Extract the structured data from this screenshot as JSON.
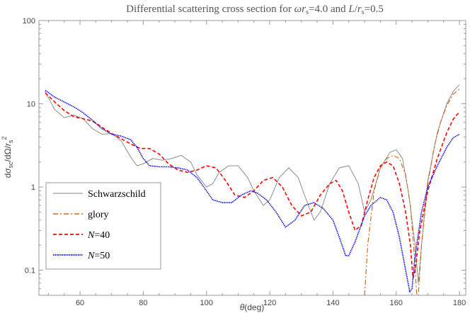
{
  "chart_data": {
    "type": "line",
    "title": "Differential scattering cross section for ωr_s=4.0 and L/r_s=0.5",
    "title_parts": {
      "prefix": "Differential scattering cross section for ",
      "omega": "ω",
      "r": "r",
      "s": "s",
      "eq1": "=4.0 and ",
      "L": "L",
      "slash": "/",
      "eq2": "=0.5"
    },
    "xlabel": "θ(deg)",
    "ylabel": "dσ_sc/dΩ/r_s²",
    "xlim": [
      47,
      182
    ],
    "ylim": [
      0.05,
      100
    ],
    "yscale": "log",
    "x_ticks": [
      60,
      80,
      100,
      120,
      140,
      160,
      180
    ],
    "y_ticks": [
      {
        "value": 0.1,
        "label": "0.1"
      },
      {
        "value": 1,
        "label": "1"
      },
      {
        "value": 10,
        "label": "10"
      },
      {
        "value": 100,
        "label": "100"
      }
    ],
    "legend_position": "bottom-left",
    "series": [
      {
        "name": "Schwarzschild",
        "color": "#808080",
        "style": "solid",
        "points": [
          [
            49,
            14
          ],
          [
            52,
            8.5
          ],
          [
            55,
            6.8
          ],
          [
            58,
            7.3
          ],
          [
            61,
            6.6
          ],
          [
            64,
            5.0
          ],
          [
            67,
            4.3
          ],
          [
            70,
            4.4
          ],
          [
            73,
            3.6
          ],
          [
            76,
            2.3
          ],
          [
            78,
            1.8
          ],
          [
            80,
            1.9
          ],
          [
            83,
            2.2
          ],
          [
            86,
            2.1
          ],
          [
            89,
            2.2
          ],
          [
            92,
            2.4
          ],
          [
            95,
            2.0
          ],
          [
            97,
            1.4
          ],
          [
            100,
            1.0
          ],
          [
            102,
            1.1
          ],
          [
            104,
            1.5
          ],
          [
            107,
            1.8
          ],
          [
            110,
            1.8
          ],
          [
            113,
            1.3
          ],
          [
            115,
            0.9
          ],
          [
            118,
            0.6
          ],
          [
            120,
            0.7
          ],
          [
            123,
            1.3
          ],
          [
            126,
            1.7
          ],
          [
            129,
            1.3
          ],
          [
            131,
            0.8
          ],
          [
            134,
            0.4
          ],
          [
            136,
            0.5
          ],
          [
            139,
            1.1
          ],
          [
            142,
            1.7
          ],
          [
            145,
            1.8
          ],
          [
            148,
            1.1
          ],
          [
            150,
            0.5
          ],
          [
            152,
            0.7
          ],
          [
            155,
            1.7
          ],
          [
            158,
            2.6
          ],
          [
            160,
            2.8
          ],
          [
            162,
            2.2
          ],
          [
            164,
            0.8
          ],
          [
            166,
            0.2
          ],
          [
            167,
            0.07
          ],
          [
            168,
            0.2
          ],
          [
            170,
            1.2
          ],
          [
            173,
            4.5
          ],
          [
            176,
            10
          ],
          [
            178,
            14
          ],
          [
            180,
            17
          ]
        ]
      },
      {
        "name": "glory",
        "color": "#d2691e",
        "style": "dash-dot",
        "points": [
          [
            150,
            0.05
          ],
          [
            151,
            0.2
          ],
          [
            153,
            0.9
          ],
          [
            155,
            1.7
          ],
          [
            157,
            2.2
          ],
          [
            159,
            2.4
          ],
          [
            161,
            2.2
          ],
          [
            163,
            1.4
          ],
          [
            164.5,
            0.6
          ],
          [
            165.5,
            0.2
          ],
          [
            166.5,
            0.05
          ],
          [
            167,
            0.05
          ],
          [
            168,
            0.2
          ],
          [
            170,
            1.1
          ],
          [
            172,
            3.0
          ],
          [
            174,
            6.0
          ],
          [
            176,
            9.5
          ],
          [
            178,
            13
          ],
          [
            180,
            15
          ]
        ]
      },
      {
        "name": "N=40",
        "color": "#ff0000",
        "style": "dashed",
        "points": [
          [
            49,
            13.5
          ],
          [
            52,
            10.5
          ],
          [
            55,
            8.3
          ],
          [
            58,
            7.0
          ],
          [
            61,
            6.6
          ],
          [
            64,
            6.2
          ],
          [
            67,
            5.2
          ],
          [
            70,
            4.4
          ],
          [
            73,
            3.8
          ],
          [
            76,
            3.3
          ],
          [
            79,
            2.9
          ],
          [
            82,
            2.9
          ],
          [
            85,
            2.5
          ],
          [
            88,
            1.9
          ],
          [
            91,
            1.6
          ],
          [
            94,
            1.5
          ],
          [
            97,
            1.6
          ],
          [
            100,
            1.8
          ],
          [
            103,
            1.7
          ],
          [
            106,
            1.2
          ],
          [
            109,
            0.8
          ],
          [
            112,
            0.75
          ],
          [
            115,
            0.9
          ],
          [
            118,
            1.2
          ],
          [
            121,
            1.3
          ],
          [
            124,
            1.0
          ],
          [
            127,
            0.6
          ],
          [
            130,
            0.45
          ],
          [
            133,
            0.5
          ],
          [
            136,
            0.8
          ],
          [
            139,
            1.1
          ],
          [
            141,
            1.2
          ],
          [
            143,
            0.9
          ],
          [
            145,
            0.5
          ],
          [
            147,
            0.3
          ],
          [
            149,
            0.35
          ],
          [
            151,
            0.7
          ],
          [
            153,
            1.3
          ],
          [
            155,
            1.8
          ],
          [
            157,
            2.0
          ],
          [
            159,
            1.8
          ],
          [
            161,
            1.1
          ],
          [
            163,
            0.5
          ],
          [
            164.5,
            0.2
          ],
          [
            165.3,
            0.08
          ],
          [
            166,
            0.1
          ],
          [
            167.5,
            0.3
          ],
          [
            170,
            0.9
          ],
          [
            173,
            2.2
          ],
          [
            176,
            4.5
          ],
          [
            178,
            6.5
          ],
          [
            180,
            8.0
          ]
        ]
      },
      {
        "name": "N=50",
        "color": "#0000ff",
        "style": "dotted",
        "points": [
          [
            49,
            14.5
          ],
          [
            52,
            12
          ],
          [
            55,
            10.5
          ],
          [
            58,
            9.2
          ],
          [
            61,
            7.8
          ],
          [
            64,
            6.3
          ],
          [
            67,
            5.0
          ],
          [
            70,
            4.3
          ],
          [
            73,
            4.1
          ],
          [
            76,
            3.7
          ],
          [
            78,
            3.0
          ],
          [
            80,
            2.2
          ],
          [
            82,
            1.8
          ],
          [
            85,
            1.75
          ],
          [
            88,
            1.75
          ],
          [
            91,
            1.7
          ],
          [
            94,
            1.6
          ],
          [
            97,
            1.3
          ],
          [
            100,
            0.9
          ],
          [
            102,
            0.7
          ],
          [
            105,
            0.65
          ],
          [
            108,
            0.65
          ],
          [
            111,
            0.8
          ],
          [
            114,
            0.9
          ],
          [
            116,
            0.85
          ],
          [
            119,
            0.7
          ],
          [
            122,
            0.5
          ],
          [
            125,
            0.33
          ],
          [
            128,
            0.4
          ],
          [
            131,
            0.6
          ],
          [
            134,
            0.65
          ],
          [
            137,
            0.55
          ],
          [
            140,
            0.4
          ],
          [
            142,
            0.25
          ],
          [
            144,
            0.15
          ],
          [
            145,
            0.15
          ],
          [
            147,
            0.22
          ],
          [
            150,
            0.45
          ],
          [
            152,
            0.6
          ],
          [
            155,
            0.75
          ],
          [
            157,
            0.7
          ],
          [
            159,
            0.5
          ],
          [
            161,
            0.25
          ],
          [
            163,
            0.1
          ],
          [
            164.3,
            0.055
          ],
          [
            165,
            0.06
          ],
          [
            166,
            0.15
          ],
          [
            168,
            0.5
          ],
          [
            170,
            1.0
          ],
          [
            173,
            1.8
          ],
          [
            176,
            3.0
          ],
          [
            178,
            3.9
          ],
          [
            180,
            4.3
          ]
        ]
      }
    ]
  }
}
